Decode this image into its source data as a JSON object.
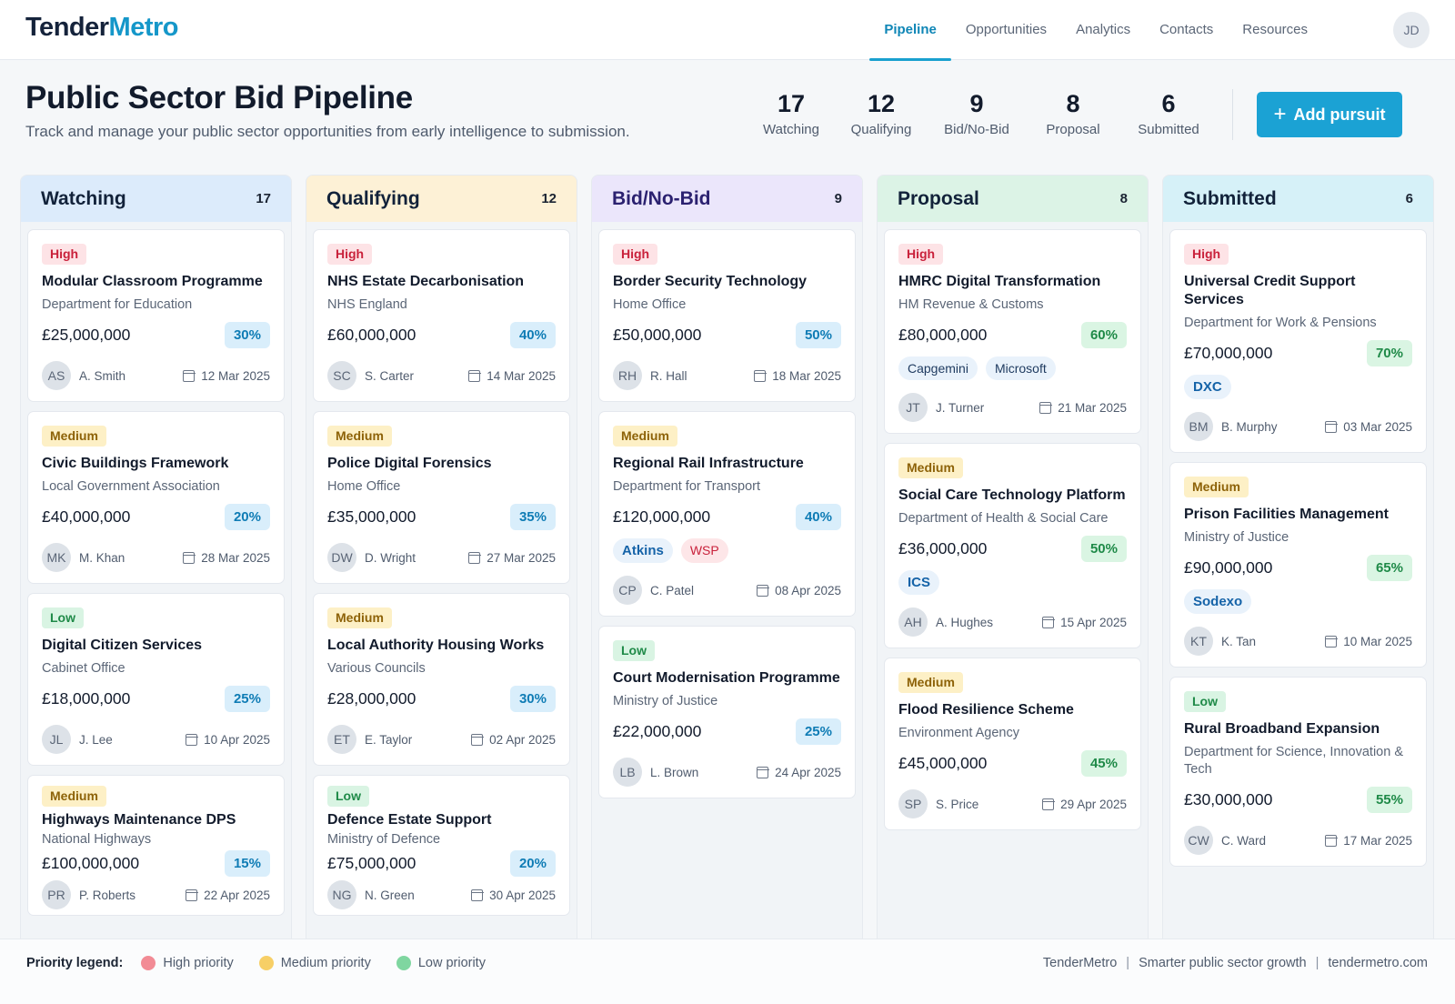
{
  "brand": {
    "part1": "Tender",
    "part2": "Metro"
  },
  "nav": [
    {
      "label": "Pipeline",
      "active": true
    },
    {
      "label": "Opportunities"
    },
    {
      "label": "Analytics"
    },
    {
      "label": "Contacts"
    },
    {
      "label": "Resources"
    }
  ],
  "user": {
    "initials": "JD"
  },
  "header": {
    "title": "Public Sector Bid Pipeline",
    "subtitle": "Track and manage your public sector opportunities from early intelligence to submission.",
    "add_button": "Add pursuit"
  },
  "stats": [
    {
      "num": "17",
      "label": "Watching"
    },
    {
      "num": "12",
      "label": "Qualifying"
    },
    {
      "num": "9",
      "label": "Bid/No-Bid"
    },
    {
      "num": "8",
      "label": "Proposal"
    },
    {
      "num": "6",
      "label": "Submitted"
    }
  ],
  "columns": [
    {
      "title": "Watching",
      "count": "17",
      "head_bg": "#dcebfb",
      "head_color": "#12223a",
      "cards": [
        {
          "priority": "High",
          "level": "high",
          "title": "Modular Classroom Programme",
          "org": "Department for Education",
          "value": "£25,000,000",
          "pct": "30%",
          "pct_style": "blue",
          "tags": [],
          "initials": "AS",
          "owner": "A. Smith",
          "date": "12 Mar 2025"
        },
        {
          "priority": "Medium",
          "level": "medium",
          "title": "Civic Buildings Framework",
          "org": "Local Government Association",
          "value": "£40,000,000",
          "pct": "20%",
          "pct_style": "blue",
          "tags": [],
          "initials": "MK",
          "owner": "M. Khan",
          "date": "28 Mar 2025"
        },
        {
          "priority": "Low",
          "level": "low",
          "title": "Digital Citizen Services",
          "org": "Cabinet Office",
          "value": "£18,000,000",
          "pct": "25%",
          "pct_style": "blue",
          "tags": [],
          "initials": "JL",
          "owner": "J. Lee",
          "date": "10 Apr 2025"
        },
        {
          "priority": "Medium",
          "level": "medium",
          "title": "Highways Maintenance DPS",
          "org": "National Highways",
          "value": "£100,000,000",
          "pct": "15%",
          "pct_style": "blue",
          "tags": [],
          "initials": "PR",
          "owner": "P. Roberts",
          "date": "22 Apr 2025",
          "compact": true
        }
      ]
    },
    {
      "title": "Qualifying",
      "count": "12",
      "head_bg": "#fdf1d6",
      "head_color": "#12223a",
      "cards": [
        {
          "priority": "High",
          "level": "high",
          "title": "NHS Estate Decarbonisation",
          "org": "NHS England",
          "value": "£60,000,000",
          "pct": "40%",
          "pct_style": "blue",
          "tags": [],
          "initials": "SC",
          "owner": "S. Carter",
          "date": "14 Mar 2025"
        },
        {
          "priority": "Medium",
          "level": "medium",
          "title": "Police Digital Forensics",
          "org": "Home Office",
          "value": "£35,000,000",
          "pct": "35%",
          "pct_style": "blue",
          "tags": [],
          "initials": "DW",
          "owner": "D. Wright",
          "date": "27 Mar 2025"
        },
        {
          "priority": "Medium",
          "level": "medium",
          "title": "Local Authority Housing Works",
          "org": "Various Councils",
          "value": "£28,000,000",
          "pct": "30%",
          "pct_style": "blue",
          "tags": [],
          "initials": "ET",
          "owner": "E. Taylor",
          "date": "02 Apr 2025"
        },
        {
          "priority": "Low",
          "level": "low",
          "title": "Defence Estate Support",
          "org": "Ministry of Defence",
          "value": "£75,000,000",
          "pct": "20%",
          "pct_style": "blue",
          "tags": [],
          "initials": "NG",
          "owner": "N. Green",
          "date": "30 Apr 2025",
          "compact": true
        }
      ]
    },
    {
      "title": "Bid/No-Bid",
      "count": "9",
      "head_bg": "#ebe6fb",
      "head_color": "#2b2170",
      "cards": [
        {
          "priority": "High",
          "level": "high",
          "title": "Border Security Technology",
          "org": "Home Office",
          "value": "£50,000,000",
          "pct": "50%",
          "pct_style": "blue",
          "tags": [],
          "initials": "RH",
          "owner": "R. Hall",
          "date": "18 Mar 2025"
        },
        {
          "priority": "Medium",
          "level": "medium",
          "title": "Regional Rail Infrastructure",
          "org": "Department for Transport",
          "value": "£120,000,000",
          "pct": "40%",
          "pct_style": "blue",
          "tags": [
            {
              "label": "Atkins",
              "style": "bold"
            },
            {
              "label": "WSP",
              "style": "red"
            }
          ],
          "initials": "CP",
          "owner": "C. Patel",
          "date": "08 Apr 2025"
        },
        {
          "priority": "Low",
          "level": "low",
          "title": "Court Modernisation Programme",
          "org": "Ministry of Justice",
          "value": "£22,000,000",
          "pct": "25%",
          "pct_style": "blue",
          "tags": [],
          "initials": "LB",
          "owner": "L. Brown",
          "date": "24 Apr 2025"
        }
      ]
    },
    {
      "title": "Proposal",
      "count": "8",
      "head_bg": "#dcf3e6",
      "head_color": "#12223a",
      "cards": [
        {
          "priority": "High",
          "level": "high",
          "title": "HMRC Digital Transformation",
          "org": "HM Revenue & Customs",
          "value": "£80,000,000",
          "pct": "60%",
          "pct_style": "green",
          "tags": [
            {
              "label": "Capgemini",
              "style": "plain"
            },
            {
              "label": "Microsoft",
              "style": "plain"
            }
          ],
          "initials": "JT",
          "owner": "J. Turner",
          "date": "21 Mar 2025"
        },
        {
          "priority": "Medium",
          "level": "medium",
          "title": "Social Care Technology Platform",
          "org": "Department of Health & Social Care",
          "value": "£36,000,000",
          "pct": "50%",
          "pct_style": "green",
          "tags": [
            {
              "label": "ICS",
              "style": "bold"
            }
          ],
          "initials": "AH",
          "owner": "A. Hughes",
          "date": "15 Apr 2025"
        },
        {
          "priority": "Medium",
          "level": "medium",
          "title": "Flood Resilience Scheme",
          "org": "Environment Agency",
          "value": "£45,000,000",
          "pct": "45%",
          "pct_style": "green",
          "tags": [],
          "initials": "SP",
          "owner": "S. Price",
          "date": "29 Apr 2025"
        }
      ]
    },
    {
      "title": "Submitted",
      "count": "6",
      "head_bg": "#d6f1f8",
      "head_color": "#12223a",
      "cards": [
        {
          "priority": "High",
          "level": "high",
          "title": "Universal Credit Support Services",
          "org": "Department for Work & Pensions",
          "value": "£70,000,000",
          "pct": "70%",
          "pct_style": "green",
          "tags": [
            {
              "label": "DXC",
              "style": "bold"
            }
          ],
          "initials": "BM",
          "owner": "B. Murphy",
          "date": "03 Mar 2025"
        },
        {
          "priority": "Medium",
          "level": "medium",
          "title": "Prison Facilities Management",
          "org": "Ministry of Justice",
          "value": "£90,000,000",
          "pct": "65%",
          "pct_style": "green",
          "tags": [
            {
              "label": "Sodexo",
              "style": "bold"
            }
          ],
          "initials": "KT",
          "owner": "K. Tan",
          "date": "10 Mar 2025"
        },
        {
          "priority": "Low",
          "level": "low",
          "title": "Rural Broadband Expansion",
          "org": "Department for Science, Innovation & Tech",
          "value": "£30,000,000",
          "pct": "55%",
          "pct_style": "green",
          "tags": [],
          "initials": "CW",
          "owner": "C. Ward",
          "date": "17 Mar 2025"
        }
      ]
    }
  ],
  "legend": {
    "title": "Priority legend:",
    "items": [
      {
        "label": "High priority",
        "color": "#f28b95"
      },
      {
        "label": "Medium priority",
        "color": "#f7cf66"
      },
      {
        "label": "Low priority",
        "color": "#7fd6a0"
      }
    ]
  },
  "footer": {
    "brand": "TenderMetro",
    "tagline": "Smarter public sector growth",
    "site": "tendermetro.com",
    "separator": "|"
  }
}
